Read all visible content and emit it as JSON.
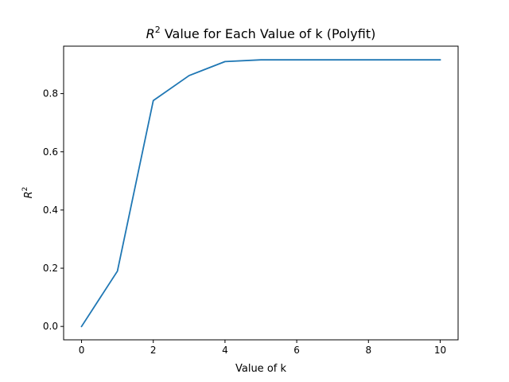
{
  "chart_data": {
    "type": "line",
    "title": {
      "base": "R",
      "sup": "2",
      "rest": " Value for Each Value of k (Polyfit)"
    },
    "xlabel": "Value of k",
    "ylabel": {
      "base": "R",
      "sup": "2"
    },
    "xlim": [
      -0.5,
      10.5
    ],
    "ylim": [
      -0.046,
      0.963
    ],
    "xticks": [
      0,
      2,
      4,
      6,
      8,
      10
    ],
    "xtick_labels": [
      "0",
      "2",
      "4",
      "6",
      "8",
      "10"
    ],
    "yticks": [
      0.0,
      0.2,
      0.4,
      0.6,
      0.8
    ],
    "ytick_labels": [
      "0.0",
      "0.2",
      "0.4",
      "0.6",
      "0.8"
    ],
    "grid": false,
    "series": [
      {
        "color": "#1f77b4",
        "x": [
          0,
          1,
          2,
          3,
          4,
          5,
          6,
          7,
          8,
          9,
          10
        ],
        "y": [
          0.0,
          0.19,
          0.776,
          0.862,
          0.91,
          0.916,
          0.916,
          0.916,
          0.916,
          0.916,
          0.916
        ]
      }
    ]
  }
}
